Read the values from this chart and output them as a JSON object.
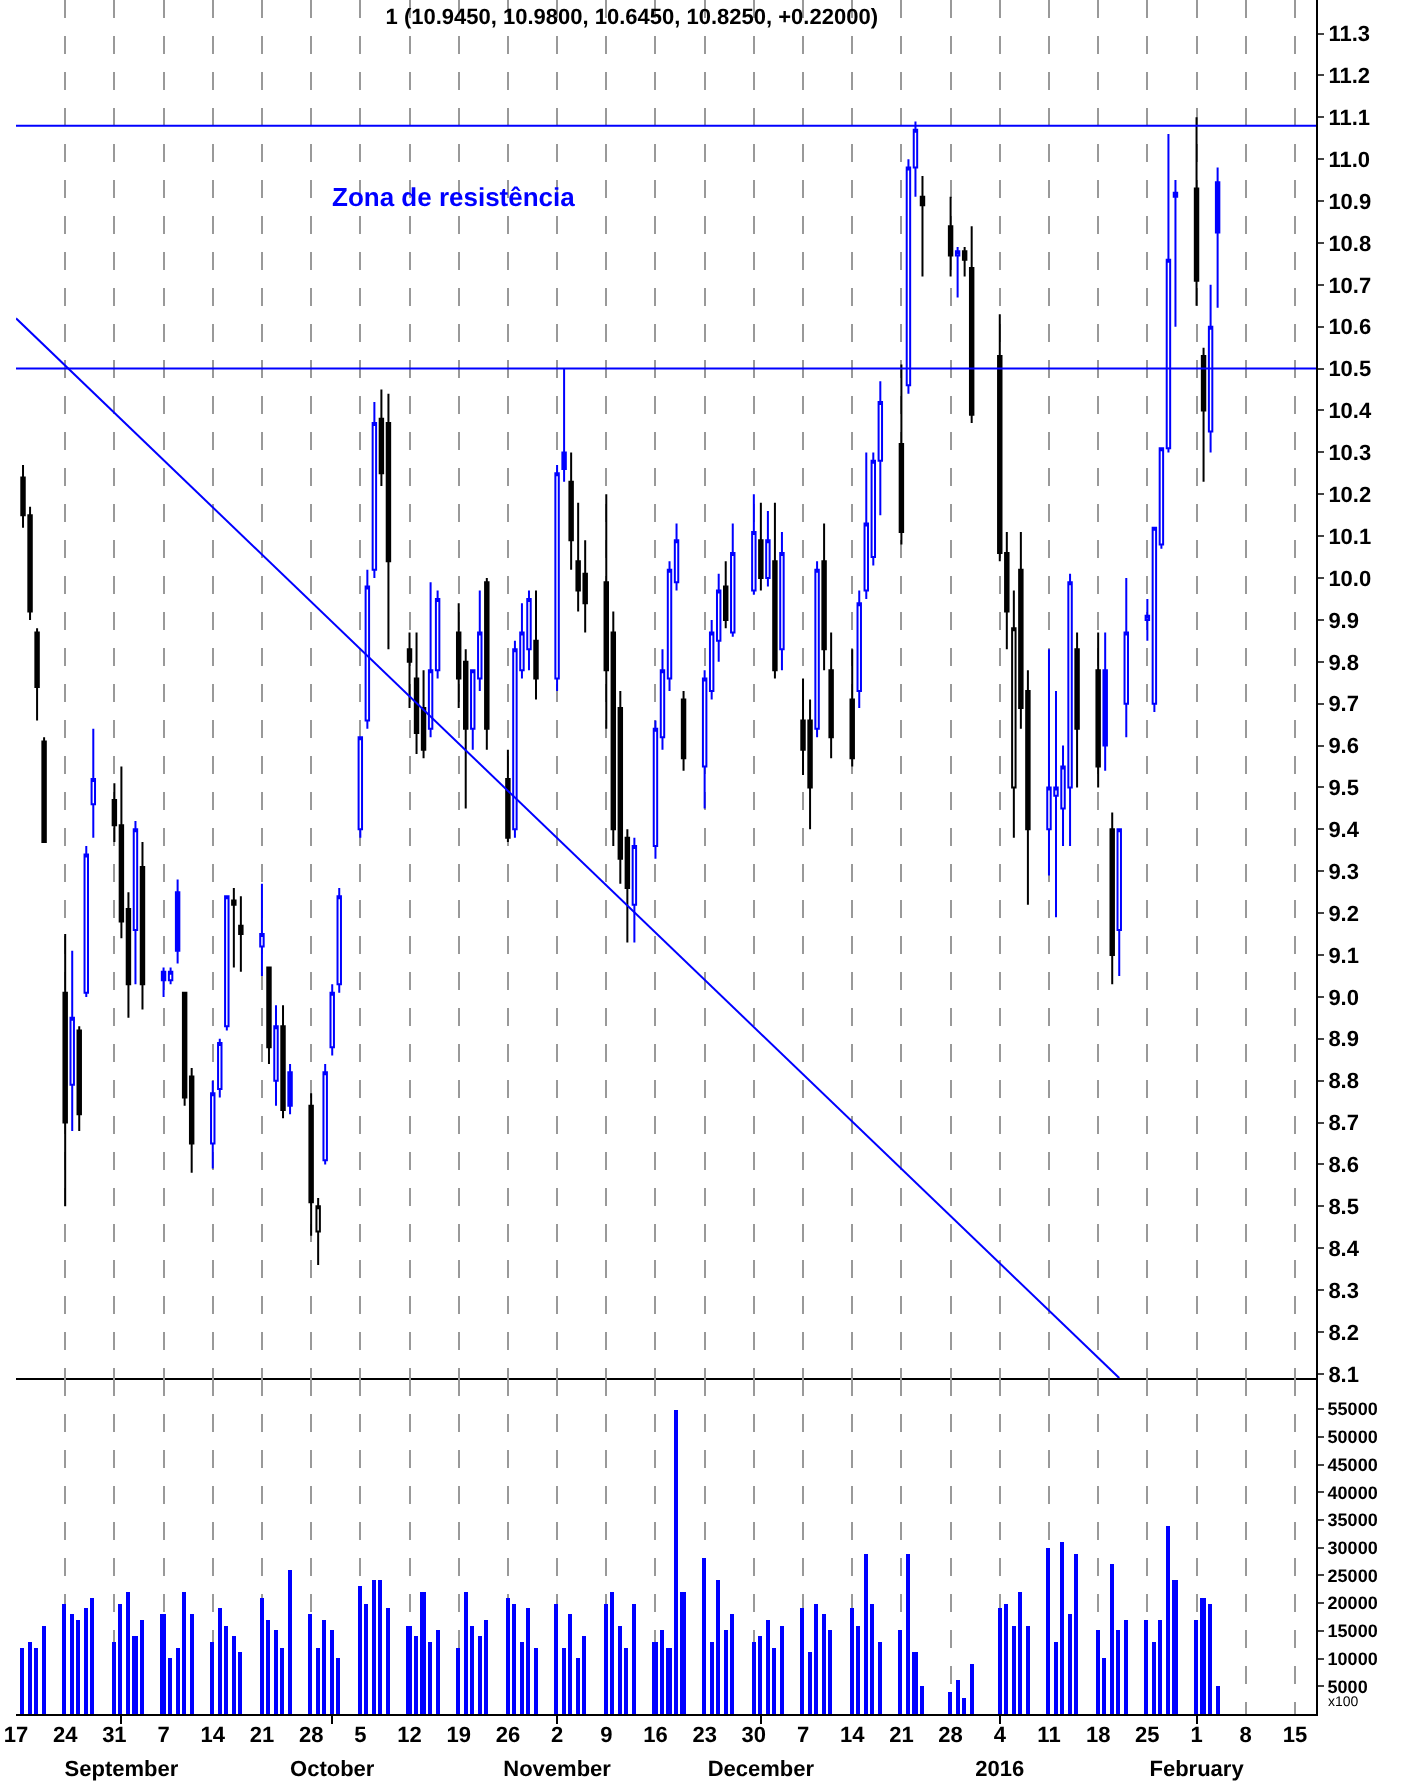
{
  "chart_data": [
    {
      "type": "candlestick",
      "title": "1 (10.9450, 10.9800, 10.6450, 10.8250, +0.22000)",
      "x": [
        "2015-08-18",
        "2015-08-19",
        "2015-08-20",
        "2015-08-21",
        "2015-08-24",
        "2015-08-25",
        "2015-08-26",
        "2015-08-27",
        "2015-08-28",
        "2015-08-31",
        "2015-09-01",
        "2015-09-02",
        "2015-09-03",
        "2015-09-04",
        "2015-09-07",
        "2015-09-08",
        "2015-09-09",
        "2015-09-10",
        "2015-09-11",
        "2015-09-14",
        "2015-09-15",
        "2015-09-16",
        "2015-09-17",
        "2015-09-18",
        "2015-09-21",
        "2015-09-22",
        "2015-09-23",
        "2015-09-24",
        "2015-09-25",
        "2015-09-28",
        "2015-09-29",
        "2015-09-30",
        "2015-10-01",
        "2015-10-02",
        "2015-10-05",
        "2015-10-06",
        "2015-10-07",
        "2015-10-08",
        "2015-10-09",
        "2015-10-12",
        "2015-10-13",
        "2015-10-14",
        "2015-10-15",
        "2015-10-16",
        "2015-10-19",
        "2015-10-20",
        "2015-10-21",
        "2015-10-22",
        "2015-10-23",
        "2015-10-26",
        "2015-10-27",
        "2015-10-28",
        "2015-10-29",
        "2015-10-30",
        "2015-11-02",
        "2015-11-03",
        "2015-11-04",
        "2015-11-05",
        "2015-11-06",
        "2015-11-09",
        "2015-11-10",
        "2015-11-11",
        "2015-11-12",
        "2015-11-13",
        "2015-11-16",
        "2015-11-17",
        "2015-11-18",
        "2015-11-19",
        "2015-11-20",
        "2015-11-23",
        "2015-11-24",
        "2015-11-25",
        "2015-11-26",
        "2015-11-27",
        "2015-11-30",
        "2015-12-01",
        "2015-12-02",
        "2015-12-03",
        "2015-12-04",
        "2015-12-07",
        "2015-12-08",
        "2015-12-09",
        "2015-12-10",
        "2015-12-11",
        "2015-12-14",
        "2015-12-15",
        "2015-12-16",
        "2015-12-17",
        "2015-12-18",
        "2015-12-21",
        "2015-12-22",
        "2015-12-23",
        "2015-12-24",
        "2015-12-28",
        "2015-12-29",
        "2015-12-30",
        "2015-12-31",
        "2016-01-04",
        "2016-01-05",
        "2016-01-06",
        "2016-01-07",
        "2016-01-08",
        "2016-01-11",
        "2016-01-12",
        "2016-01-13",
        "2016-01-14",
        "2016-01-15",
        "2016-01-18",
        "2016-01-19",
        "2016-01-20",
        "2016-01-21",
        "2016-01-22",
        "2016-01-25",
        "2016-01-26",
        "2016-01-27",
        "2016-01-28",
        "2016-01-29",
        "2016-02-01",
        "2016-02-02",
        "2016-02-03",
        "2016-02-04"
      ],
      "ohlc": [
        [
          10.24,
          10.27,
          10.12,
          10.15
        ],
        [
          10.15,
          10.17,
          9.9,
          9.92
        ],
        [
          9.87,
          9.88,
          9.66,
          9.74
        ],
        [
          9.61,
          9.62,
          9.37,
          9.37
        ],
        [
          9.01,
          9.15,
          8.5,
          8.7
        ],
        [
          8.79,
          9.11,
          8.68,
          8.95
        ],
        [
          8.92,
          8.93,
          8.68,
          8.72
        ],
        [
          9.01,
          9.36,
          9.0,
          9.34
        ],
        [
          9.46,
          9.64,
          9.38,
          9.52
        ],
        [
          9.47,
          9.51,
          9.37,
          9.41
        ],
        [
          9.41,
          9.55,
          9.14,
          9.18
        ],
        [
          9.21,
          9.25,
          8.95,
          9.03
        ],
        [
          9.16,
          9.42,
          9.03,
          9.4
        ],
        [
          9.31,
          9.37,
          8.97,
          9.03
        ],
        [
          9.06,
          9.07,
          9.0,
          9.04
        ],
        [
          9.04,
          9.07,
          9.03,
          9.06
        ],
        [
          9.25,
          9.28,
          9.08,
          9.11
        ],
        [
          9.01,
          9.01,
          8.74,
          8.76
        ],
        [
          8.81,
          8.83,
          8.58,
          8.65
        ],
        [
          8.65,
          8.8,
          8.59,
          8.77
        ],
        [
          8.78,
          8.9,
          8.76,
          8.89
        ],
        [
          8.93,
          9.24,
          8.92,
          9.24
        ],
        [
          9.23,
          9.26,
          9.07,
          9.22
        ],
        [
          9.17,
          9.24,
          9.06,
          9.15
        ],
        [
          9.12,
          9.27,
          9.05,
          9.15
        ],
        [
          9.07,
          9.07,
          8.84,
          8.88
        ],
        [
          8.8,
          8.98,
          8.74,
          8.93
        ],
        [
          8.93,
          8.98,
          8.71,
          8.73
        ],
        [
          8.82,
          8.84,
          8.72,
          8.74
        ],
        [
          8.74,
          8.77,
          8.43,
          8.51
        ],
        [
          8.44,
          8.52,
          8.36,
          8.5
        ],
        [
          8.61,
          8.84,
          8.6,
          8.82
        ],
        [
          8.88,
          9.03,
          8.86,
          9.01
        ],
        [
          9.03,
          9.26,
          9.01,
          9.24
        ],
        [
          9.4,
          9.62,
          9.38,
          9.62
        ],
        [
          9.66,
          10.02,
          9.64,
          9.98
        ],
        [
          10.02,
          10.42,
          10.0,
          10.37
        ],
        [
          10.38,
          10.45,
          10.22,
          10.25
        ],
        [
          10.37,
          10.44,
          9.83,
          10.04
        ],
        [
          9.83,
          9.87,
          9.69,
          9.8
        ],
        [
          9.76,
          9.87,
          9.58,
          9.63
        ],
        [
          9.69,
          9.78,
          9.57,
          9.59
        ],
        [
          9.64,
          9.99,
          9.62,
          9.78
        ],
        [
          9.78,
          9.97,
          9.76,
          9.95
        ],
        [
          9.87,
          9.94,
          9.69,
          9.76
        ],
        [
          9.8,
          9.83,
          9.45,
          9.64
        ],
        [
          9.64,
          9.78,
          9.59,
          9.78
        ],
        [
          9.76,
          9.97,
          9.73,
          9.87
        ],
        [
          9.99,
          10.0,
          9.59,
          9.64
        ],
        [
          9.52,
          9.59,
          9.37,
          9.38
        ],
        [
          9.4,
          9.85,
          9.38,
          9.83
        ],
        [
          9.78,
          9.94,
          9.76,
          9.87
        ],
        [
          9.83,
          9.97,
          9.78,
          9.95
        ],
        [
          9.85,
          9.97,
          9.71,
          9.76
        ],
        [
          9.76,
          10.27,
          9.73,
          10.25
        ],
        [
          10.3,
          10.5,
          10.23,
          10.26
        ],
        [
          10.23,
          10.3,
          10.02,
          10.09
        ],
        [
          10.04,
          10.18,
          9.92,
          9.97
        ],
        [
          10.01,
          10.09,
          9.87,
          9.94
        ],
        [
          9.99,
          10.2,
          9.64,
          9.78
        ],
        [
          9.87,
          9.92,
          9.36,
          9.4
        ],
        [
          9.69,
          9.73,
          9.27,
          9.33
        ],
        [
          9.38,
          9.4,
          9.13,
          9.26
        ],
        [
          9.22,
          9.38,
          9.13,
          9.36
        ],
        [
          9.36,
          9.66,
          9.33,
          9.64
        ],
        [
          9.62,
          9.83,
          9.59,
          9.78
        ],
        [
          9.76,
          10.04,
          9.73,
          10.02
        ],
        [
          9.99,
          10.13,
          9.97,
          10.09
        ],
        [
          9.71,
          9.73,
          9.54,
          9.57
        ],
        [
          9.55,
          9.78,
          9.45,
          9.76
        ],
        [
          9.73,
          9.9,
          9.71,
          9.87
        ],
        [
          9.85,
          10.01,
          9.8,
          9.97
        ],
        [
          9.98,
          10.04,
          9.88,
          9.9
        ],
        [
          9.87,
          10.13,
          9.86,
          10.06
        ],
        [
          9.97,
          10.2,
          9.96,
          10.11
        ],
        [
          10.09,
          10.18,
          9.97,
          10.0
        ],
        [
          10.0,
          10.16,
          9.98,
          10.09
        ],
        [
          10.04,
          10.18,
          9.76,
          9.78
        ],
        [
          9.83,
          10.11,
          9.78,
          10.06
        ],
        [
          9.66,
          9.76,
          9.53,
          9.59
        ],
        [
          9.66,
          9.71,
          9.4,
          9.5
        ],
        [
          9.64,
          10.04,
          9.62,
          10.02
        ],
        [
          10.04,
          10.13,
          9.78,
          9.83
        ],
        [
          9.78,
          9.87,
          9.57,
          9.62
        ],
        [
          9.71,
          9.83,
          9.55,
          9.57
        ],
        [
          9.73,
          9.97,
          9.69,
          9.94
        ],
        [
          9.97,
          10.3,
          9.95,
          10.13
        ],
        [
          10.05,
          10.3,
          10.03,
          10.28
        ],
        [
          10.28,
          10.47,
          10.15,
          10.42
        ],
        [
          10.32,
          10.51,
          10.08,
          10.11
        ],
        [
          10.46,
          11.0,
          10.44,
          10.98
        ],
        [
          10.98,
          11.09,
          10.91,
          11.07
        ],
        [
          10.91,
          10.96,
          10.72,
          10.89
        ],
        [
          10.84,
          10.91,
          10.72,
          10.77
        ],
        [
          10.77,
          10.79,
          10.67,
          10.78
        ],
        [
          10.78,
          10.79,
          10.72,
          10.76
        ],
        [
          10.74,
          10.84,
          10.37,
          10.39
        ],
        [
          10.53,
          10.63,
          10.04,
          10.06
        ],
        [
          10.06,
          10.11,
          9.83,
          9.92
        ],
        [
          9.5,
          9.97,
          9.38,
          9.88
        ],
        [
          10.02,
          10.11,
          9.64,
          9.69
        ],
        [
          9.73,
          9.78,
          9.22,
          9.4
        ],
        [
          9.4,
          9.83,
          9.29,
          9.5
        ],
        [
          9.48,
          9.73,
          9.19,
          9.5
        ],
        [
          9.45,
          9.6,
          9.36,
          9.55
        ],
        [
          9.5,
          10.01,
          9.36,
          9.99
        ],
        [
          9.83,
          9.87,
          9.5,
          9.64
        ],
        [
          9.78,
          9.87,
          9.5,
          9.55
        ],
        [
          9.78,
          9.87,
          9.54,
          9.6
        ],
        [
          9.4,
          9.44,
          9.03,
          9.1
        ],
        [
          9.16,
          9.4,
          9.05,
          9.4
        ],
        [
          9.7,
          10.0,
          9.62,
          9.87
        ],
        [
          9.9,
          9.95,
          9.85,
          9.91
        ],
        [
          9.7,
          10.12,
          9.68,
          10.12
        ],
        [
          10.08,
          10.31,
          10.07,
          10.31
        ],
        [
          10.31,
          11.06,
          10.3,
          10.76
        ],
        [
          10.91,
          10.95,
          10.6,
          10.92
        ],
        [
          10.93,
          11.1,
          10.65,
          10.71
        ],
        [
          10.53,
          10.55,
          10.23,
          10.4
        ],
        [
          10.35,
          10.7,
          10.3,
          10.6
        ],
        [
          10.945,
          10.98,
          10.645,
          10.825
        ]
      ],
      "colors": [
        "#000000",
        "#000000",
        "#000000",
        "#000000",
        "#000000",
        "#0000ff",
        "#000000",
        "#0000ff",
        "#0000ff",
        "#000000",
        "#000000",
        "#000000",
        "#0000ff",
        "#000000",
        "#0000ff",
        "#0000ff",
        "#0000ff",
        "#000000",
        "#000000",
        "#0000ff",
        "#0000ff",
        "#0000ff",
        "#000000",
        "#000000",
        "#0000ff",
        "#000000",
        "#0000ff",
        "#000000",
        "#0000ff",
        "#000000",
        "#000000",
        "#0000ff",
        "#0000ff",
        "#0000ff",
        "#0000ff",
        "#0000ff",
        "#0000ff",
        "#000000",
        "#000000",
        "#000000",
        "#000000",
        "#000000",
        "#0000ff",
        "#0000ff",
        "#000000",
        "#000000",
        "#0000ff",
        "#0000ff",
        "#000000",
        "#000000",
        "#0000ff",
        "#0000ff",
        "#0000ff",
        "#000000",
        "#0000ff",
        "#0000ff",
        "#000000",
        "#000000",
        "#000000",
        "#000000",
        "#000000",
        "#000000",
        "#000000",
        "#0000ff",
        "#0000ff",
        "#0000ff",
        "#0000ff",
        "#0000ff",
        "#000000",
        "#0000ff",
        "#0000ff",
        "#0000ff",
        "#000000",
        "#0000ff",
        "#0000ff",
        "#000000",
        "#0000ff",
        "#000000",
        "#0000ff",
        "#000000",
        "#000000",
        "#0000ff",
        "#000000",
        "#000000",
        "#000000",
        "#0000ff",
        "#0000ff",
        "#0000ff",
        "#0000ff",
        "#000000",
        "#0000ff",
        "#0000ff",
        "#000000",
        "#000000",
        "#0000ff",
        "#000000",
        "#000000",
        "#000000",
        "#000000",
        "#000000",
        "#000000",
        "#000000",
        "#0000ff",
        "#0000ff",
        "#0000ff",
        "#0000ff",
        "#000000",
        "#000000",
        "#0000ff",
        "#000000",
        "#0000ff",
        "#0000ff",
        "#0000ff",
        "#0000ff",
        "#0000ff",
        "#0000ff",
        "#0000ff",
        "#000000",
        "#000000",
        "#0000ff",
        "#0000ff"
      ],
      "series": [
        {
          "type": "line",
          "color": "#0000ff",
          "x": [
            "2015-08-17",
            "2016-01-21"
          ],
          "values": [
            10.62,
            8.09
          ]
        }
      ],
      "ref_lines": [
        {
          "axis": "y",
          "value": 11.08,
          "color": "#0000ff"
        },
        {
          "axis": "y",
          "value": 10.5,
          "color": "#0000ff"
        }
      ],
      "annotations": [
        "Zona de resistência"
      ],
      "xlim": [
        "2015-08-17",
        "2016-02-18"
      ],
      "xticks": [
        {
          "value": "2015-08-17",
          "label": null
        },
        {
          "value": "2015-08-24",
          "label": null
        },
        {
          "value": "2015-08-31",
          "label": null
        },
        {
          "value": "2015-09-07",
          "label": null
        },
        {
          "value": "2015-09-14",
          "label": null
        },
        {
          "value": "2015-09-21",
          "label": null
        },
        {
          "value": "2015-09-28",
          "label": null
        },
        {
          "value": "2015-10-05",
          "label": null
        },
        {
          "value": "2015-10-12",
          "label": null
        },
        {
          "value": "2015-10-19",
          "label": null
        },
        {
          "value": "2015-10-26",
          "label": null
        },
        {
          "value": "2015-11-02",
          "label": null
        },
        {
          "value": "2015-11-09",
          "label": null
        },
        {
          "value": "2015-11-16",
          "label": null
        },
        {
          "value": "2015-11-23",
          "label": null
        },
        {
          "value": "2015-11-30",
          "label": null
        },
        {
          "value": "2015-12-07",
          "label": null
        },
        {
          "value": "2015-12-14",
          "label": null
        },
        {
          "value": "2015-12-21",
          "label": null
        },
        {
          "value": "2015-12-28",
          "label": null
        },
        {
          "value": "2016-01-04",
          "label": null
        },
        {
          "value": "2016-01-11",
          "label": null
        },
        {
          "value": "2016-01-18",
          "label": null
        },
        {
          "value": "2016-01-25",
          "label": null
        },
        {
          "value": "2016-02-01",
          "label": null
        },
        {
          "value": "2016-02-08",
          "label": null
        },
        {
          "value": "2016-02-15",
          "label": null
        }
      ],
      "ylim": [
        8.09,
        11.38
      ],
      "yticks": [
        8.1,
        8.2,
        8.3,
        8.4,
        8.5,
        8.6,
        8.7,
        8.8,
        8.9,
        {
          "value": 9,
          "label": "9.0"
        },
        9.1,
        9.2,
        9.3,
        9.4,
        9.5,
        9.6,
        9.7,
        9.8,
        9.9,
        {
          "value": 10,
          "label": "10.0"
        },
        10.1,
        10.2,
        10.3,
        10.4,
        10.5,
        10.6,
        10.7,
        10.8,
        10.9,
        {
          "value": 11,
          "label": "11.0"
        },
        11.1,
        11.2,
        11.3
      ],
      "grid": "x",
      "tick_labels": "y"
    },
    {
      "type": "bar",
      "color": "#0000ff",
      "x": [
        "2015-08-18",
        "2015-08-19",
        "2015-08-20",
        "2015-08-21",
        "2015-08-24",
        "2015-08-25",
        "2015-08-26",
        "2015-08-27",
        "2015-08-28",
        "2015-08-31",
        "2015-09-01",
        "2015-09-02",
        "2015-09-03",
        "2015-09-04",
        "2015-09-07",
        "2015-09-08",
        "2015-09-09",
        "2015-09-10",
        "2015-09-11",
        "2015-09-14",
        "2015-09-15",
        "2015-09-16",
        "2015-09-17",
        "2015-09-18",
        "2015-09-21",
        "2015-09-22",
        "2015-09-23",
        "2015-09-24",
        "2015-09-25",
        "2015-09-28",
        "2015-09-29",
        "2015-09-30",
        "2015-10-01",
        "2015-10-02",
        "2015-10-05",
        "2015-10-06",
        "2015-10-07",
        "2015-10-08",
        "2015-10-09",
        "2015-10-12",
        "2015-10-13",
        "2015-10-14",
        "2015-10-15",
        "2015-10-16",
        "2015-10-19",
        "2015-10-20",
        "2015-10-21",
        "2015-10-22",
        "2015-10-23",
        "2015-10-26",
        "2015-10-27",
        "2015-10-28",
        "2015-10-29",
        "2015-10-30",
        "2015-11-02",
        "2015-11-03",
        "2015-11-04",
        "2015-11-05",
        "2015-11-06",
        "2015-11-09",
        "2015-11-10",
        "2015-11-11",
        "2015-11-12",
        "2015-11-13",
        "2015-11-16",
        "2015-11-17",
        "2015-11-18",
        "2015-11-19",
        "2015-11-20",
        "2015-11-23",
        "2015-11-24",
        "2015-11-25",
        "2015-11-26",
        "2015-11-27",
        "2015-11-30",
        "2015-12-01",
        "2015-12-02",
        "2015-12-03",
        "2015-12-04",
        "2015-12-07",
        "2015-12-08",
        "2015-12-09",
        "2015-12-10",
        "2015-12-11",
        "2015-12-14",
        "2015-12-15",
        "2015-12-16",
        "2015-12-17",
        "2015-12-18",
        "2015-12-21",
        "2015-12-22",
        "2015-12-23",
        "2015-12-24",
        "2015-12-28",
        "2015-12-29",
        "2015-12-30",
        "2015-12-31",
        "2016-01-04",
        "2016-01-05",
        "2016-01-06",
        "2016-01-07",
        "2016-01-08",
        "2016-01-11",
        "2016-01-12",
        "2016-01-13",
        "2016-01-14",
        "2016-01-15",
        "2016-01-18",
        "2016-01-19",
        "2016-01-20",
        "2016-01-21",
        "2016-01-22",
        "2016-01-25",
        "2016-01-26",
        "2016-01-27",
        "2016-01-28",
        "2016-01-29",
        "2016-02-01",
        "2016-02-02",
        "2016-02-03",
        "2016-02-04"
      ],
      "values": [
        12000,
        13000,
        12000,
        16000,
        20000,
        18000,
        17000,
        19000,
        21000,
        13000,
        20000,
        22000,
        14000,
        17000,
        18000,
        10000,
        12000,
        22000,
        18000,
        13000,
        19000,
        16000,
        14000,
        11000,
        21000,
        17000,
        15000,
        12000,
        26000,
        18000,
        12000,
        17000,
        15000,
        10000,
        23000,
        20000,
        24000,
        24000,
        19000,
        16000,
        14000,
        22000,
        13000,
        15000,
        12000,
        22000,
        16000,
        14000,
        17000,
        21000,
        20000,
        13000,
        19000,
        12000,
        20000,
        12000,
        18000,
        10000,
        14000,
        20000,
        22000,
        16000,
        12000,
        20000,
        13000,
        15000,
        12000,
        55000,
        22000,
        28000,
        13000,
        24000,
        15000,
        18000,
        13000,
        14000,
        17000,
        12000,
        16000,
        19000,
        11000,
        20000,
        18000,
        15000,
        19000,
        16000,
        29000,
        20000,
        13000,
        15000,
        29000,
        11000,
        5000,
        4000,
        6000,
        3000,
        9000,
        19000,
        20000,
        16000,
        22000,
        16000,
        30000,
        13000,
        31000,
        18000,
        29000,
        15000,
        10000,
        27000,
        15000,
        17000,
        17000,
        13000,
        17000,
        34000,
        24000,
        17000,
        21000,
        20000,
        5000
      ],
      "annotations": [
        "x100"
      ],
      "xlim": [
        "2015-08-17",
        "2016-02-18"
      ],
      "xticks": [
        {
          "value": "2015-08-17",
          "label": "17"
        },
        {
          "value": "2015-08-24",
          "label": "24"
        },
        {
          "value": "2015-08-31",
          "label": "31"
        },
        {
          "value": "2015-09-07",
          "label": "7"
        },
        {
          "value": "2015-09-14",
          "label": "14"
        },
        {
          "value": "2015-09-21",
          "label": "21"
        },
        {
          "value": "2015-09-28",
          "label": "28"
        },
        {
          "value": "2015-10-05",
          "label": "5"
        },
        {
          "value": "2015-10-12",
          "label": "12"
        },
        {
          "value": "2015-10-19",
          "label": "19"
        },
        {
          "value": "2015-10-26",
          "label": "26"
        },
        {
          "value": "2015-11-02",
          "label": "2"
        },
        {
          "value": "2015-11-09",
          "label": "9"
        },
        {
          "value": "2015-11-16",
          "label": "16"
        },
        {
          "value": "2015-11-23",
          "label": "23"
        },
        {
          "value": "2015-11-30",
          "label": "30"
        },
        {
          "value": "2015-12-07",
          "label": "7"
        },
        {
          "value": "2015-12-14",
          "label": "14"
        },
        {
          "value": "2015-12-21",
          "label": "21"
        },
        {
          "value": "2015-12-28",
          "label": "28"
        },
        {
          "value": "2016-01-04",
          "label": "4"
        },
        {
          "value": "2016-01-11",
          "label": "11"
        },
        {
          "value": "2016-01-18",
          "label": "18"
        },
        {
          "value": "2016-01-25",
          "label": "25"
        },
        {
          "value": "2016-02-01",
          "label": "1"
        },
        {
          "value": "2016-02-08",
          "label": "8"
        },
        {
          "value": "2016-02-15",
          "label": "15"
        }
      ],
      "x2lim": [
        "2015-08-17",
        "2016-02-18"
      ],
      "x2ticks": [
        {
          "value": "2015-09-01",
          "label": "September"
        },
        {
          "value": "2015-10-01",
          "label": "October"
        },
        {
          "value": "2015-11-02",
          "label": "November"
        },
        {
          "value": "2015-12-01",
          "label": "December"
        },
        {
          "value": "2016-01-04",
          "label": "2016"
        },
        {
          "value": "2016-02-01",
          "label": "February"
        }
      ],
      "ylim": [
        0,
        60600
      ],
      "yticks": [
        5000,
        10000,
        15000,
        20000,
        25000,
        30000,
        35000,
        40000,
        45000,
        50000,
        55000
      ],
      "grid": "x"
    }
  ]
}
